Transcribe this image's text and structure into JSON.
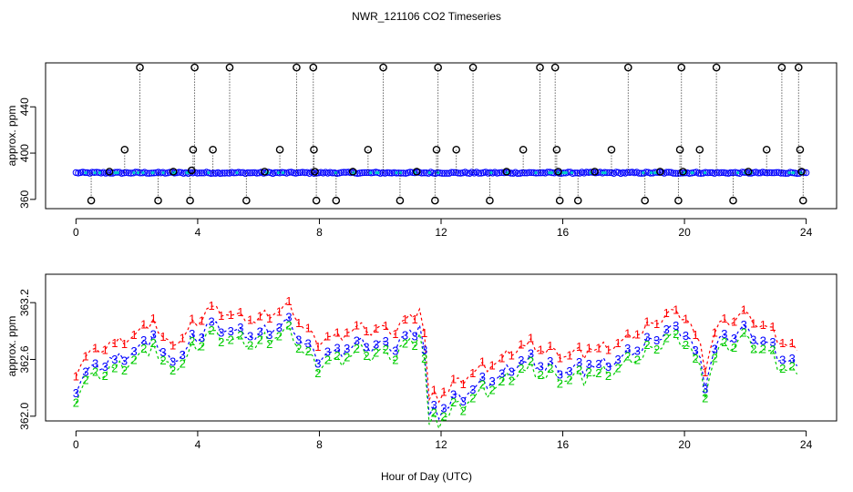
{
  "chart_data": [
    {
      "type": "scatter",
      "title": "NWR_121106  CO2 Timeseries",
      "xlabel": "",
      "ylabel": "approx. ppm",
      "xlim": [
        -1,
        25
      ],
      "ylim": [
        352,
        478
      ],
      "xticks": [
        "0",
        "4",
        "8",
        "12",
        "16",
        "20",
        "24"
      ],
      "yticks": [
        "360",
        "400",
        "440"
      ],
      "baseline_ppm": 383,
      "series": [
        {
          "name": "raw",
          "color": "#0000ff",
          "x": [
            0.5,
            1.1,
            1.6,
            2.1,
            2.7,
            3.2,
            3.75,
            3.8,
            3.85,
            3.9,
            4.5,
            5.05,
            5.6,
            6.2,
            6.7,
            7.25,
            7.8,
            7.82,
            7.85,
            7.9,
            8.55,
            9.1,
            9.6,
            10.1,
            10.65,
            11.2,
            11.8,
            11.85,
            11.9,
            12.5,
            13.05,
            13.6,
            14.15,
            14.7,
            15.25,
            15.75,
            15.8,
            15.85,
            15.9,
            16.5,
            17.05,
            17.6,
            18.15,
            18.7,
            19.2,
            19.8,
            19.85,
            19.9,
            19.95,
            20.5,
            21.05,
            21.6,
            22.1,
            22.7,
            23.2,
            23.75,
            23.8,
            23.85,
            23.9
          ],
          "y": [
            359,
            384,
            403,
            474,
            359,
            384,
            359,
            385,
            403,
            474,
            403,
            474,
            359,
            384,
            403,
            474,
            474,
            403,
            384,
            359,
            359,
            384,
            403,
            474,
            359,
            384,
            359,
            403,
            474,
            403,
            474,
            359,
            384,
            403,
            474,
            474,
            403,
            384,
            359,
            359,
            384,
            403,
            474,
            359,
            384,
            359,
            403,
            474,
            384,
            403,
            474,
            359,
            384,
            403,
            474,
            474,
            403,
            384,
            359
          ]
        }
      ]
    },
    {
      "type": "line",
      "title": "",
      "xlabel": "Hour of Day (UTC)",
      "ylabel": "approx. ppm",
      "xlim": [
        -1,
        25
      ],
      "ylim": [
        361.95,
        363.5
      ],
      "xticks": [
        "0",
        "4",
        "8",
        "12",
        "16",
        "20",
        "24"
      ],
      "yticks": [
        "362.0",
        "362.6",
        "363.2"
      ],
      "series": [
        {
          "name": "1",
          "color": "#ff0000",
          "offset": 0.17
        },
        {
          "name": "3",
          "color": "#0000ff",
          "offset": 0.0
        },
        {
          "name": "2",
          "color": "#00cc00",
          "offset": -0.09
        }
      ],
      "base_curve": {
        "x": [
          0,
          0.5,
          1.0,
          2.0,
          2.5,
          3.0,
          4.0,
          4.5,
          5.0,
          6.0,
          6.5,
          7.0,
          7.5,
          8.0,
          9.0,
          10.0,
          10.5,
          11.0,
          11.4,
          11.6,
          12.0,
          12.5,
          13.0,
          14.0,
          14.5,
          15.0,
          15.5,
          16.0,
          17.0,
          18.0,
          19.0,
          19.5,
          20.0,
          20.5,
          20.7,
          21.0,
          21.5,
          22.0,
          22.5,
          23.0,
          23.7
        ],
        "y": [
          362.32,
          362.5,
          362.58,
          362.7,
          362.88,
          362.55,
          362.82,
          363.0,
          362.9,
          362.85,
          362.9,
          363.02,
          362.75,
          362.6,
          362.72,
          362.75,
          362.75,
          362.9,
          362.98,
          362.02,
          362.05,
          362.18,
          362.3,
          362.4,
          362.55,
          362.6,
          362.52,
          362.45,
          362.55,
          362.62,
          362.82,
          362.95,
          362.92,
          362.55,
          362.32,
          362.75,
          362.85,
          362.9,
          362.8,
          362.7,
          362.5
        ]
      }
    }
  ]
}
